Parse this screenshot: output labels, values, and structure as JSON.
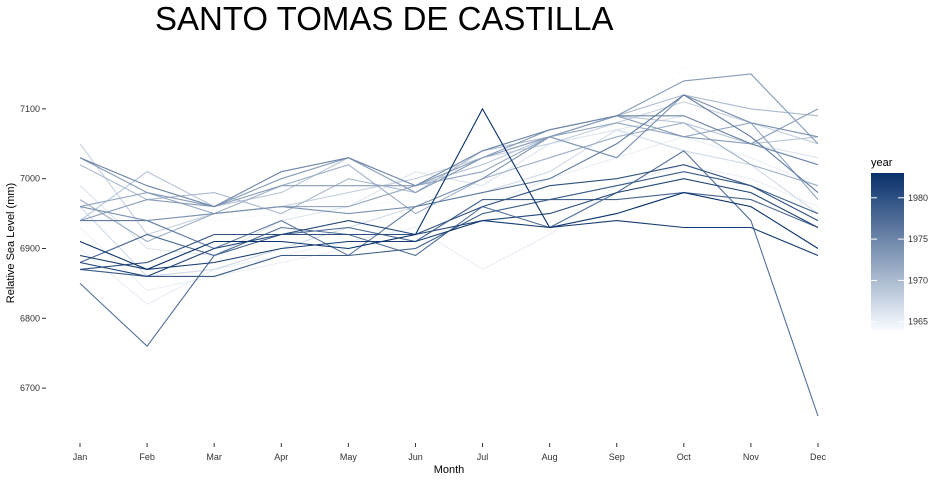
{
  "chart_data": {
    "type": "line",
    "title": "SANTO TOMAS DE CASTILLA",
    "xlabel": "Month",
    "ylabel": "Relative Sea Level (mm)",
    "categories": [
      "Jan",
      "Feb",
      "Mar",
      "Apr",
      "May",
      "Jun",
      "Jul",
      "Aug",
      "Sep",
      "Oct",
      "Nov",
      "Dec"
    ],
    "yticks": [
      6700,
      6800,
      6900,
      7000,
      7100
    ],
    "ylim": [
      6640,
      7170
    ],
    "grid": false,
    "legend": {
      "title": "year",
      "placement": "right",
      "range": [
        1964,
        1983
      ],
      "ticks": [
        1965,
        1970,
        1975,
        1980
      ],
      "low_color": "#f7fbff",
      "high_color": "#08306b"
    },
    "series": [
      {
        "year": 1964,
        "values": [
          6950,
          6960,
          6940,
          6950,
          6960,
          6970,
          6990,
          7030,
          7060,
          7160,
          7080,
          7020
        ]
      },
      {
        "year": 1965,
        "values": [
          6930,
          6840,
          6860,
          6880,
          6900,
          6920,
          6960,
          7000,
          7030,
          7060,
          7030,
          6990
        ]
      },
      {
        "year": 1965,
        "values": [
          6900,
          6820,
          6870,
          6890,
          6910,
          6930,
          6870,
          6920,
          6990,
          7020,
          7000,
          6960
        ]
      },
      {
        "year": 1966,
        "values": [
          6990,
          6900,
          6890,
          6940,
          6960,
          7010,
          6990,
          7050,
          7070,
          7090,
          7050,
          7030
        ]
      },
      {
        "year": 1967,
        "values": [
          6960,
          6860,
          6870,
          6900,
          6930,
          6960,
          6980,
          7010,
          7070,
          7040,
          7020,
          6950
        ]
      },
      {
        "year": 1968,
        "values": [
          7050,
          6920,
          6950,
          6960,
          6980,
          7000,
          7030,
          7050,
          7080,
          7110,
          7080,
          7050
        ]
      },
      {
        "year": 1969,
        "values": [
          6940,
          7010,
          6960,
          6980,
          7030,
          6990,
          7020,
          7060,
          7090,
          7080,
          7050,
          7060
        ]
      },
      {
        "year": 1970,
        "values": [
          7020,
          6970,
          6980,
          6950,
          7000,
          6980,
          7040,
          7060,
          7090,
          7120,
          7100,
          7090
        ]
      },
      {
        "year": 1971,
        "values": [
          6970,
          6910,
          6950,
          6990,
          7020,
          6950,
          7000,
          7030,
          7060,
          7080,
          7020,
          6990
        ]
      },
      {
        "year": 1972,
        "values": [
          6960,
          6980,
          6950,
          6960,
          6960,
          6990,
          7010,
          7060,
          7080,
          7060,
          7080,
          6970
        ]
      },
      {
        "year": 1973,
        "values": [
          7030,
          6980,
          6960,
          7000,
          7030,
          6980,
          7030,
          7060,
          7090,
          7140,
          7150,
          7050
        ]
      },
      {
        "year": 1973,
        "values": [
          6940,
          6970,
          6960,
          6990,
          6990,
          6990,
          7030,
          7070,
          7090,
          7060,
          7050,
          7100
        ]
      },
      {
        "year": 1974,
        "values": [
          6960,
          6940,
          6950,
          6960,
          6950,
          6960,
          7000,
          7060,
          7030,
          7120,
          7080,
          7060
        ]
      },
      {
        "year": 1975,
        "values": [
          7030,
          6990,
          6960,
          7010,
          7030,
          6990,
          7040,
          7070,
          7090,
          7090,
          7050,
          7020
        ]
      },
      {
        "year": 1976,
        "values": [
          6940,
          6940,
          6900,
          6940,
          6890,
          6960,
          6980,
          7000,
          7050,
          7120,
          7060,
          6980
        ]
      },
      {
        "year": 1977,
        "values": [
          6850,
          6760,
          6890,
          6930,
          6920,
          6890,
          6960,
          6930,
          6980,
          7040,
          6940,
          6660
        ]
      },
      {
        "year": 1978,
        "values": [
          6880,
          6920,
          6890,
          6920,
          6930,
          6910,
          6970,
          6970,
          6970,
          6980,
          6970,
          6930
        ]
      },
      {
        "year": 1979,
        "values": [
          6870,
          6860,
          6860,
          6890,
          6890,
          6900,
          6950,
          6970,
          6990,
          7010,
          6990,
          6950
        ]
      },
      {
        "year": 1980,
        "values": [
          6870,
          6880,
          6920,
          6920,
          6920,
          6920,
          6960,
          6990,
          7000,
          7020,
          6990,
          6940
        ]
      },
      {
        "year": 1981,
        "values": [
          6880,
          6860,
          6900,
          6920,
          6940,
          6920,
          6940,
          6950,
          6980,
          7000,
          6980,
          6930
        ]
      },
      {
        "year": 1982,
        "values": [
          6890,
          6870,
          6880,
          6900,
          6910,
          6910,
          6940,
          6930,
          6940,
          6930,
          6930,
          6890
        ]
      },
      {
        "year": 1983,
        "values": [
          6910,
          6870,
          6910,
          6910,
          6900,
          6920,
          7100,
          6930,
          6950,
          6980,
          6960,
          6900
        ]
      }
    ]
  }
}
